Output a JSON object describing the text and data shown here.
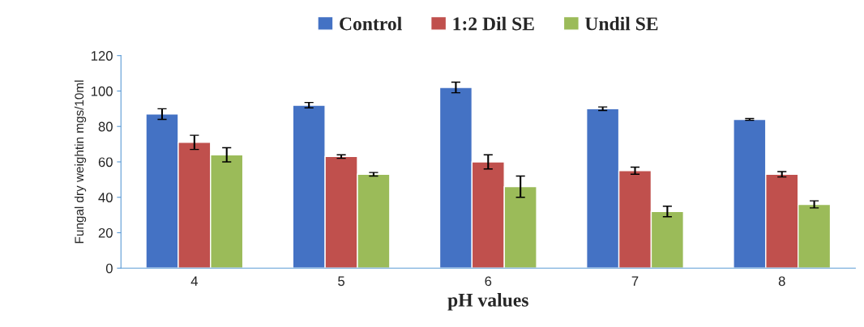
{
  "chart_data": {
    "type": "bar",
    "xlabel": "pH values",
    "ylabel": "Fungal dry weightin mgs/10ml",
    "categories": [
      "4",
      "5",
      "6",
      "7",
      "8"
    ],
    "series": [
      {
        "name": "Control",
        "color": "#4472c4",
        "values": [
          87,
          92,
          102,
          90,
          84
        ],
        "errors": [
          3,
          1.5,
          3,
          1,
          0.5
        ]
      },
      {
        "name": "1:2 Dil SE",
        "color": "#c0504d",
        "values": [
          71,
          63,
          60,
          55,
          53
        ],
        "errors": [
          4,
          1,
          4,
          2,
          1.5
        ]
      },
      {
        "name": "Undil SE",
        "color": "#9bbb59",
        "values": [
          64,
          53,
          46,
          32,
          36
        ],
        "errors": [
          4,
          1,
          6,
          3,
          2
        ]
      }
    ],
    "ylim": [
      0,
      120
    ],
    "yticks": [
      0,
      20,
      40,
      60,
      80,
      100,
      120
    ],
    "grid": false,
    "legend": "top"
  }
}
